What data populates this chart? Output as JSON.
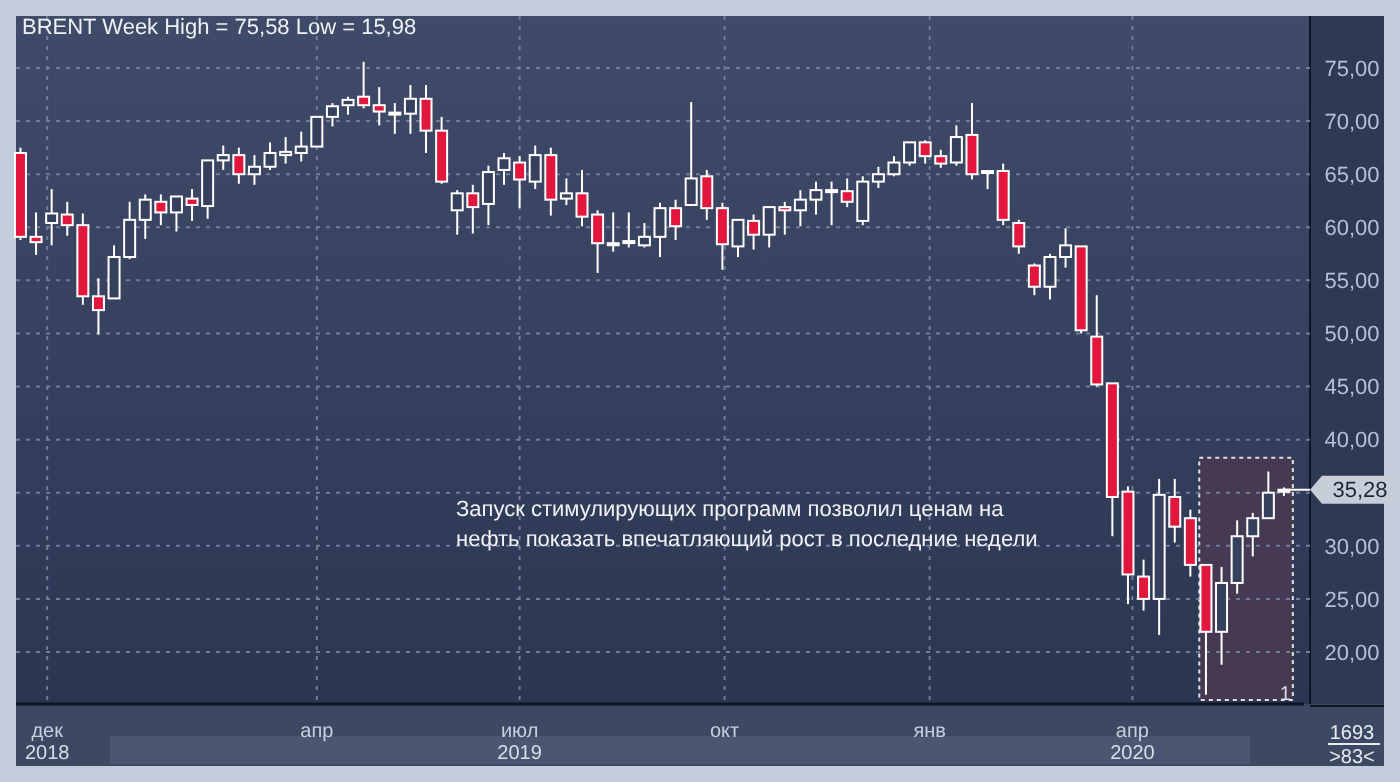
{
  "chart_data": {
    "type": "candlestick",
    "title": "BRENT Week High = 75,58 Low = 15,98",
    "x": [
      "2018-11-19",
      "2018-11-26",
      "2018-12-03",
      "2018-12-10",
      "2018-12-17",
      "2018-12-24",
      "2018-12-31",
      "2019-01-07",
      "2019-01-14",
      "2019-01-21",
      "2019-01-28",
      "2019-02-04",
      "2019-02-11",
      "2019-02-18",
      "2019-02-25",
      "2019-03-04",
      "2019-03-11",
      "2019-03-18",
      "2019-03-25",
      "2019-04-01",
      "2019-04-08",
      "2019-04-15",
      "2019-04-22",
      "2019-04-29",
      "2019-05-06",
      "2019-05-13",
      "2019-05-20",
      "2019-05-27",
      "2019-06-03",
      "2019-06-10",
      "2019-06-17",
      "2019-06-24",
      "2019-07-01",
      "2019-07-08",
      "2019-07-15",
      "2019-07-22",
      "2019-07-29",
      "2019-08-05",
      "2019-08-12",
      "2019-08-19",
      "2019-08-26",
      "2019-09-02",
      "2019-09-09",
      "2019-09-16",
      "2019-09-23",
      "2019-09-30",
      "2019-10-07",
      "2019-10-14",
      "2019-10-21",
      "2019-10-28",
      "2019-11-04",
      "2019-11-11",
      "2019-11-18",
      "2019-11-25",
      "2019-12-02",
      "2019-12-09",
      "2019-12-16",
      "2019-12-23",
      "2019-12-30",
      "2020-01-06",
      "2020-01-13",
      "2020-01-20",
      "2020-01-27",
      "2020-02-03",
      "2020-02-10",
      "2020-02-17",
      "2020-02-24",
      "2020-03-02",
      "2020-03-09",
      "2020-03-16",
      "2020-03-23",
      "2020-03-30",
      "2020-04-06",
      "2020-04-13",
      "2020-04-20",
      "2020-04-27",
      "2020-05-04",
      "2020-05-11",
      "2020-05-18",
      "2020-05-25",
      "2020-06-01",
      "2020-06-08"
    ],
    "ohlc": [
      [
        67.0,
        67.5,
        58.8,
        59.1
      ],
      [
        59.1,
        61.4,
        57.4,
        58.6
      ],
      [
        60.4,
        63.6,
        58.3,
        61.3
      ],
      [
        61.2,
        62.4,
        59.2,
        60.2
      ],
      [
        60.2,
        61.3,
        52.7,
        53.5
      ],
      [
        53.5,
        55.2,
        49.9,
        52.2
      ],
      [
        53.3,
        58.3,
        53.3,
        57.2
      ],
      [
        57.2,
        62.4,
        57.0,
        60.7
      ],
      [
        60.7,
        63.1,
        58.9,
        62.6
      ],
      [
        62.4,
        63.1,
        60.2,
        61.4
      ],
      [
        61.4,
        62.9,
        59.6,
        62.9
      ],
      [
        62.7,
        63.6,
        60.6,
        62.1
      ],
      [
        62.0,
        66.3,
        60.8,
        66.3
      ],
      [
        66.3,
        67.7,
        65.4,
        66.8
      ],
      [
        66.8,
        67.5,
        64.1,
        65.0
      ],
      [
        65.0,
        66.8,
        64.0,
        65.7
      ],
      [
        65.7,
        68.0,
        65.4,
        67.0
      ],
      [
        66.8,
        68.5,
        66.0,
        67.1
      ],
      [
        67.0,
        69.0,
        66.2,
        67.6
      ],
      [
        67.6,
        70.4,
        67.6,
        70.4
      ],
      [
        70.4,
        71.7,
        69.5,
        71.4
      ],
      [
        71.5,
        72.3,
        70.6,
        72.0
      ],
      [
        72.3,
        75.58,
        71.2,
        71.5
      ],
      [
        71.5,
        73.2,
        69.6,
        70.9
      ],
      [
        70.7,
        71.7,
        68.8,
        70.8
      ],
      [
        70.7,
        73.4,
        68.8,
        72.1
      ],
      [
        72.1,
        73.4,
        67.0,
        69.1
      ],
      [
        69.1,
        70.4,
        64.1,
        64.3
      ],
      [
        61.6,
        63.5,
        59.3,
        63.2
      ],
      [
        63.2,
        64.0,
        59.4,
        61.9
      ],
      [
        62.2,
        65.8,
        60.2,
        65.2
      ],
      [
        65.4,
        67.0,
        64.0,
        66.5
      ],
      [
        66.1,
        66.7,
        61.8,
        64.5
      ],
      [
        64.3,
        67.7,
        63.6,
        66.8
      ],
      [
        66.8,
        67.5,
        61.1,
        62.6
      ],
      [
        62.7,
        64.6,
        62.1,
        63.2
      ],
      [
        63.2,
        65.4,
        60.1,
        61.0
      ],
      [
        61.2,
        61.6,
        55.7,
        58.5
      ],
      [
        58.4,
        61.4,
        57.7,
        58.5
      ],
      [
        58.6,
        61.4,
        58.1,
        58.7
      ],
      [
        58.3,
        60.4,
        58.1,
        59.1
      ],
      [
        59.1,
        62.3,
        57.2,
        61.8
      ],
      [
        61.8,
        62.6,
        58.8,
        60.1
      ],
      [
        62.1,
        71.8,
        62.1,
        64.6
      ],
      [
        64.8,
        65.4,
        60.7,
        61.8
      ],
      [
        61.8,
        62.3,
        56.0,
        58.4
      ],
      [
        58.2,
        60.7,
        57.2,
        60.7
      ],
      [
        60.6,
        61.2,
        57.9,
        59.3
      ],
      [
        59.3,
        61.9,
        58.1,
        61.9
      ],
      [
        61.9,
        62.4,
        59.3,
        61.6
      ],
      [
        61.6,
        63.5,
        60.1,
        62.6
      ],
      [
        62.6,
        64.3,
        61.2,
        63.5
      ],
      [
        63.4,
        64.3,
        60.2,
        63.5
      ],
      [
        63.4,
        64.6,
        61.9,
        62.4
      ],
      [
        60.6,
        64.8,
        60.2,
        64.3
      ],
      [
        64.3,
        65.7,
        63.7,
        65.0
      ],
      [
        65.0,
        66.7,
        64.8,
        66.1
      ],
      [
        66.1,
        68.0,
        65.8,
        68.0
      ],
      [
        68.0,
        68.2,
        66.0,
        66.7
      ],
      [
        66.7,
        67.3,
        65.6,
        66.0
      ],
      [
        66.1,
        69.6,
        65.8,
        68.5
      ],
      [
        68.7,
        71.7,
        64.5,
        65.0
      ],
      [
        65.2,
        65.3,
        63.6,
        65.3
      ],
      [
        65.3,
        66.0,
        60.2,
        60.7
      ],
      [
        60.4,
        60.7,
        57.5,
        58.2
      ],
      [
        56.4,
        56.6,
        53.6,
        54.4
      ],
      [
        54.4,
        57.5,
        53.2,
        57.2
      ],
      [
        57.2,
        59.9,
        56.2,
        58.3
      ],
      [
        58.2,
        58.2,
        50.0,
        50.3
      ],
      [
        49.7,
        53.6,
        45.0,
        45.2
      ],
      [
        45.3,
        45.3,
        30.9,
        34.6
      ],
      [
        35.1,
        35.6,
        24.5,
        27.3
      ],
      [
        27.1,
        28.7,
        23.9,
        25.0
      ],
      [
        25.0,
        36.3,
        21.6,
        34.8
      ],
      [
        34.6,
        36.3,
        30.3,
        31.8
      ],
      [
        32.6,
        33.4,
        27.1,
        28.2
      ],
      [
        28.2,
        28.2,
        15.98,
        21.9
      ],
      [
        21.9,
        28.0,
        18.8,
        26.5
      ],
      [
        26.5,
        32.4,
        25.5,
        30.9
      ],
      [
        30.9,
        33.1,
        29.0,
        32.6
      ],
      [
        32.6,
        37.0,
        32.6,
        35.0
      ],
      [
        35.2,
        35.5,
        34.7,
        35.28
      ]
    ],
    "colors": [
      "#e3173e",
      "#e3173e",
      "#ffffff",
      "#e3173e",
      "#e3173e",
      "#e3173e",
      "#ffffff",
      "#ffffff",
      "#ffffff",
      "#e3173e",
      "#ffffff",
      "#e3173e",
      "#ffffff",
      "#ffffff",
      "#e3173e",
      "#ffffff",
      "#ffffff",
      "#ffffff",
      "#ffffff",
      "#ffffff",
      "#ffffff",
      "#ffffff",
      "#e3173e",
      "#e3173e",
      "#ffffff",
      "#ffffff",
      "#e3173e",
      "#e3173e",
      "#ffffff",
      "#e3173e",
      "#ffffff",
      "#ffffff",
      "#e3173e",
      "#ffffff",
      "#e3173e",
      "#ffffff",
      "#e3173e",
      "#e3173e",
      "#ffffff",
      "#ffffff",
      "#ffffff",
      "#ffffff",
      "#e3173e",
      "#ffffff",
      "#e3173e",
      "#e3173e",
      "#ffffff",
      "#e3173e",
      "#ffffff",
      "#e3173e",
      "#ffffff",
      "#ffffff",
      "#ffffff",
      "#e3173e",
      "#ffffff",
      "#ffffff",
      "#ffffff",
      "#ffffff",
      "#e3173e",
      "#e3173e",
      "#ffffff",
      "#e3173e",
      "#ffffff",
      "#e3173e",
      "#e3173e",
      "#e3173e",
      "#ffffff",
      "#ffffff",
      "#e3173e",
      "#e3173e",
      "#e3173e",
      "#e3173e",
      "#e3173e",
      "#ffffff",
      "#e3173e",
      "#e3173e",
      "#e3173e",
      "#ffffff",
      "#ffffff",
      "#ffffff",
      "#ffffff",
      "#ffffff"
    ],
    "xlim": [
      "2018-11-17",
      "2020-06-17"
    ],
    "xticks": [
      {
        "value": "2018-12-01",
        "label": "дек\n2018"
      },
      {
        "value": "2019-04-01",
        "label": "апр"
      },
      {
        "value": "2019-07-01",
        "label": "июл\n2019"
      },
      {
        "value": "2019-10-01",
        "label": "окт"
      },
      {
        "value": "2020-01-01",
        "label": "янв"
      },
      {
        "value": "2020-04-01",
        "label": "апр\n2020"
      }
    ],
    "ylim": [
      15.1,
      79.9
    ],
    "yticks": [
      {
        "value": 20,
        "label": "20,00"
      },
      {
        "value": 25,
        "label": "25,00"
      },
      {
        "value": 30,
        "label": "30,00"
      },
      {
        "value": 35,
        "label": null
      },
      {
        "value": 40,
        "label": "40,00"
      },
      {
        "value": 45,
        "label": "45,00"
      },
      {
        "value": 50,
        "label": "50,00"
      },
      {
        "value": 55,
        "label": "55,00"
      },
      {
        "value": 60,
        "label": "60,00"
      },
      {
        "value": 65,
        "label": "65,00"
      },
      {
        "value": 70,
        "label": "70,00"
      },
      {
        "value": 75,
        "label": "75,00"
      }
    ],
    "grid": true,
    "bands": [
      {
        "axis": "x",
        "from": "2020-05-01",
        "to": "2020-06-12",
        "label": "1",
        "color": "#4a3a52"
      }
    ],
    "annotations": [
      {
        "text": "35,28",
        "x": "2020-06-08",
        "y": 35.28
      },
      "Запуск стимулирующих программ позволил ценам на\nнефть показать впечатляющий рост в последние недели",
      "1693",
      ">83<"
    ]
  }
}
